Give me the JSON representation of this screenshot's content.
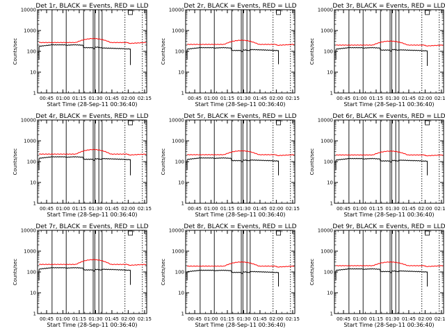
{
  "chart_data": {
    "type": "line",
    "panels": [
      {
        "title": "Det 1r, BLACK = Events, RED = LLD",
        "lld_base": 265,
        "lld_peak": 410,
        "ev_base": 205,
        "ev_after": 150,
        "ev_late": 145,
        "final": 22
      },
      {
        "title": "Det 2r, BLACK = Events, RED = LLD",
        "lld_base": 215,
        "lld_peak": 340,
        "ev_base": 150,
        "ev_after": 110,
        "ev_late": 122,
        "final": 24
      },
      {
        "title": "Det 3r, BLACK = Events, RED = LLD",
        "lld_base": 200,
        "lld_peak": 310,
        "ev_base": 150,
        "ev_after": 115,
        "ev_late": 118,
        "final": 20
      },
      {
        "title": "Det 4r, BLACK = Events, RED = LLD",
        "lld_base": 230,
        "lld_peak": 380,
        "ev_base": 170,
        "ev_after": 130,
        "ev_late": 140,
        "final": 22
      },
      {
        "title": "Det 5r, BLACK = Events, RED = LLD",
        "lld_base": 215,
        "lld_peak": 330,
        "ev_base": 150,
        "ev_after": 112,
        "ev_late": 120,
        "final": 22
      },
      {
        "title": "Det 6r, BLACK = Events, RED = LLD",
        "lld_base": 210,
        "lld_peak": 320,
        "ev_base": 140,
        "ev_after": 108,
        "ev_late": 118,
        "final": 22
      },
      {
        "title": "Det 7r, BLACK = Events, RED = LLD",
        "lld_base": 230,
        "lld_peak": 390,
        "ev_base": 160,
        "ev_after": 125,
        "ev_late": 135,
        "final": 24
      },
      {
        "title": "Det 8r, BLACK = Events, RED = LLD",
        "lld_base": 190,
        "lld_peak": 300,
        "ev_base": 120,
        "ev_after": 95,
        "ev_late": 105,
        "final": 20
      },
      {
        "title": "Det 9r, BLACK = Events, RED = LLD",
        "lld_base": 200,
        "lld_peak": 300,
        "ev_base": 140,
        "ev_after": 105,
        "ev_late": 112,
        "final": 20
      }
    ],
    "x_tick_labels": [
      "00:45",
      "01:00",
      "01:15",
      "01:30",
      "01:45",
      "02:00",
      "02:15"
    ],
    "x_ticks_minutes": [
      45,
      60,
      75,
      90,
      105,
      120,
      135
    ],
    "xlim_minutes": [
      36.67,
      137
    ],
    "xlabel": "Start Time (28-Sep-11 00:36:40)",
    "ylabel": "Counts/sec",
    "y_scale": "log",
    "ylim": [
      1,
      10000
    ],
    "y_tick_labels": [
      "1",
      "10",
      "100",
      "1000",
      "10000"
    ],
    "solid_vlines_minutes": [
      50,
      63,
      79,
      87.8,
      89.3,
      93,
      96
    ],
    "dotted_vlines_minutes": [
      117,
      133
    ],
    "box_marker_minutes": 122,
    "series": [
      {
        "name": "Events",
        "color": "#000000"
      },
      {
        "name": "LLD",
        "color": "#ff0000"
      }
    ],
    "grid": false
  }
}
